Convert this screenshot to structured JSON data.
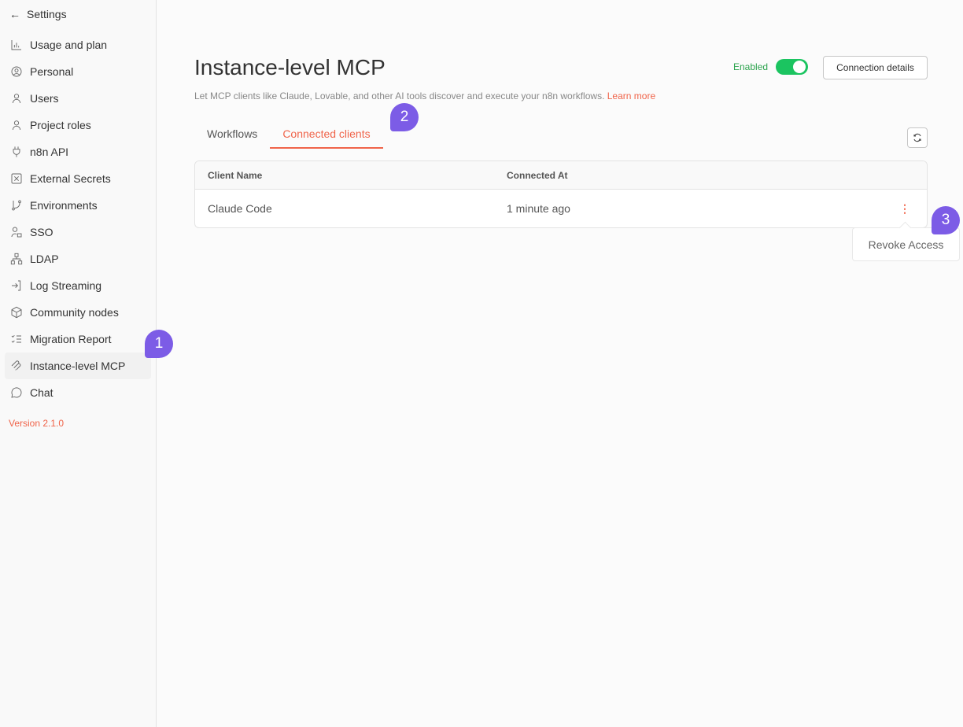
{
  "sidebar": {
    "back_label": "Settings",
    "items": [
      {
        "label": "Usage and plan",
        "icon": "bar-chart-icon"
      },
      {
        "label": "Personal",
        "icon": "user-circle-icon"
      },
      {
        "label": "Users",
        "icon": "user-icon"
      },
      {
        "label": "Project roles",
        "icon": "user-icon"
      },
      {
        "label": "n8n API",
        "icon": "plug-icon"
      },
      {
        "label": "External Secrets",
        "icon": "vault-icon"
      },
      {
        "label": "Environments",
        "icon": "git-branch-icon"
      },
      {
        "label": "SSO",
        "icon": "user-lock-icon"
      },
      {
        "label": "LDAP",
        "icon": "network-icon"
      },
      {
        "label": "Log Streaming",
        "icon": "log-in-icon"
      },
      {
        "label": "Community nodes",
        "icon": "box-icon"
      },
      {
        "label": "Migration Report",
        "icon": "list-checks-icon"
      },
      {
        "label": "Instance-level MCP",
        "icon": "mcp-icon",
        "active": true
      },
      {
        "label": "Chat",
        "icon": "message-circle-icon"
      }
    ],
    "version": "Version 2.1.0"
  },
  "header": {
    "title": "Instance-level MCP",
    "subtitle": "Let MCP clients like Claude, Lovable, and other AI tools discover and execute your n8n workflows.",
    "learn_more": "Learn more",
    "enabled_label": "Enabled",
    "enabled": true,
    "connection_details": "Connection details"
  },
  "tabs": [
    {
      "label": "Workflows"
    },
    {
      "label": "Connected clients",
      "active": true
    }
  ],
  "table": {
    "columns": [
      "Client Name",
      "Connected At"
    ],
    "rows": [
      {
        "client": "Claude Code",
        "connected_at": "1 minute ago"
      }
    ]
  },
  "menu": {
    "revoke": "Revoke Access"
  },
  "markers": [
    "1",
    "2",
    "3"
  ],
  "colors": {
    "accent": "#f0644a",
    "toggle": "#1bc460",
    "marker": "#7c5ce6"
  }
}
